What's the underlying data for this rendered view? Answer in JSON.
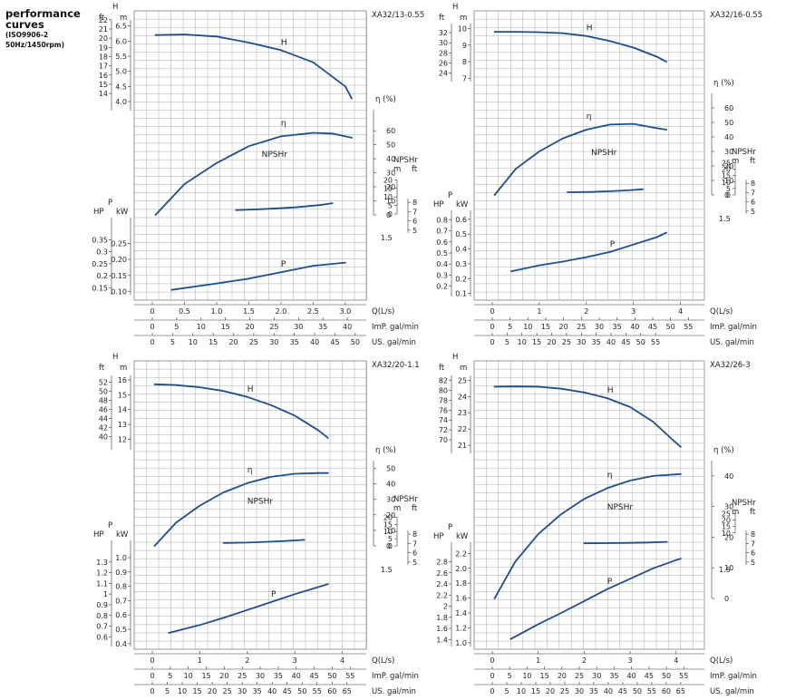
{
  "header": {
    "title_line1": "performance",
    "title_line2": "curves",
    "standard": "(ISO9906-2",
    "frequency": "50Hz/1450rpm)"
  },
  "chart_data": [
    {
      "type": "line",
      "model": "XA32/13-0.55",
      "qmax": 3.1,
      "q_ticks": [
        0,
        0.5,
        1.0,
        1.5,
        2.0,
        2.5,
        3.0
      ],
      "q_tick_labels": [
        "0",
        "0.5",
        "1.0",
        "1.5",
        "2.0",
        "2.5",
        "3.0"
      ],
      "imp_ticks": [
        0,
        5,
        10,
        15,
        20,
        25,
        30,
        35,
        40
      ],
      "us_ticks": [
        0,
        5,
        10,
        15,
        20,
        25,
        30,
        35,
        40,
        45,
        50
      ],
      "x_labels": {
        "q": "Q(L/s)",
        "imp": "ImP. gal/min",
        "us": "US. gal/min"
      },
      "H": {
        "m_range": [
          3.7,
          6.7
        ],
        "m_ticks": [
          4.0,
          4.5,
          5.0,
          5.5,
          6.0,
          6.5
        ],
        "m_tick_labels": [
          "4.0",
          "4.5",
          "5.0",
          "5.5",
          "6.0",
          "6.5"
        ],
        "ft_ticks": [
          14,
          15,
          16,
          17,
          18,
          19,
          20,
          21,
          22
        ],
        "points": [
          [
            0.05,
            6.2
          ],
          [
            0.5,
            6.22
          ],
          [
            1.0,
            6.15
          ],
          [
            1.5,
            5.95
          ],
          [
            2.0,
            5.7
          ],
          [
            2.5,
            5.3
          ],
          [
            3.0,
            4.5
          ],
          [
            3.1,
            4.1
          ]
        ]
      },
      "eta": {
        "max": 75,
        "ticks": [
          0,
          10,
          20,
          30,
          40,
          50,
          60
        ],
        "points": [
          [
            0.05,
            0
          ],
          [
            0.5,
            22
          ],
          [
            1.0,
            37
          ],
          [
            1.5,
            49
          ],
          [
            2.0,
            56
          ],
          [
            2.5,
            58.5
          ],
          [
            2.8,
            58
          ],
          [
            3.1,
            55
          ]
        ]
      },
      "npsh": {
        "ticks_m": [
          0,
          0.5,
          1.0,
          1.5,
          2.0
        ],
        "tick_labels_m": [
          "0",
          "5",
          "10",
          "15",
          "20"
        ],
        "ticks_ft": [
          5,
          6,
          7,
          8
        ],
        "ft_range": [
          4.6,
          8.5
        ],
        "points": [
          [
            1.3,
            2.3
          ],
          [
            1.7,
            2.8
          ],
          [
            2.2,
            3.8
          ],
          [
            2.6,
            5.2
          ],
          [
            2.8,
            6.3
          ]
        ]
      },
      "P": {
        "kw_range": [
          0.09,
          0.33
        ],
        "kw_ticks": [
          0.1,
          0.15,
          0.2,
          0.25
        ],
        "kw_tick_labels": [
          "0.10",
          "0.15",
          "0.20",
          "0.25"
        ],
        "hp_ticks": [
          0.15,
          0.2,
          0.25,
          0.3,
          0.35
        ],
        "points": [
          [
            0.3,
            0.105
          ],
          [
            1.0,
            0.125
          ],
          [
            1.5,
            0.14
          ],
          [
            2.0,
            0.16
          ],
          [
            2.5,
            0.18
          ],
          [
            3.0,
            0.19
          ]
        ]
      },
      "labels": {
        "H": "H",
        "eta": "η",
        "npsh": "NPSHr",
        "P": "P",
        "H_axis": "H",
        "m": "m",
        "ft": "ft",
        "eta_unit": "η (%)",
        "npsh_axis": "NPSHr",
        "p_axis": "P",
        "hp": "HP",
        "kw": "kW"
      }
    },
    {
      "type": "line",
      "model": "XA32/16-0.55",
      "qmax": 4.2,
      "q_ticks": [
        0,
        1,
        2,
        3,
        4
      ],
      "q_tick_labels": [
        "0",
        "1",
        "2",
        "3",
        "4"
      ],
      "imp_ticks": [
        0,
        5,
        10,
        15,
        20,
        25,
        30,
        35,
        40,
        45,
        50,
        55
      ],
      "us_ticks": [
        0,
        5,
        10,
        15,
        20,
        25,
        30,
        35,
        40,
        45,
        50,
        55
      ],
      "x_labels": {
        "q": "Q(L/s)",
        "imp": "ImP. gal/min",
        "us": "US. gal/min"
      },
      "H": {
        "m_range": [
          6.8,
          10.3
        ],
        "m_ticks": [
          7,
          8,
          9,
          10
        ],
        "m_tick_labels": [
          "7",
          "8",
          "9",
          "10"
        ],
        "ft_ticks": [
          24,
          26,
          28,
          30,
          32
        ],
        "points": [
          [
            0.05,
            9.8
          ],
          [
            0.5,
            9.8
          ],
          [
            1.0,
            9.78
          ],
          [
            1.5,
            9.72
          ],
          [
            2.0,
            9.55
          ],
          [
            2.5,
            9.25
          ],
          [
            3.0,
            8.85
          ],
          [
            3.5,
            8.3
          ],
          [
            3.7,
            8.0
          ]
        ]
      },
      "eta": {
        "max": 70,
        "ticks": [
          0,
          10,
          20,
          30,
          40,
          50,
          60
        ],
        "points": [
          [
            0.05,
            0
          ],
          [
            0.5,
            18
          ],
          [
            1.0,
            30
          ],
          [
            1.5,
            39
          ],
          [
            2.0,
            45
          ],
          [
            2.5,
            48.5
          ],
          [
            3.0,
            49
          ],
          [
            3.5,
            46
          ],
          [
            3.7,
            45
          ]
        ]
      },
      "npsh": {
        "ticks_m": [
          0,
          0.5,
          1.0,
          1.5,
          2.0,
          2.5
        ],
        "tick_labels_m": [
          "0",
          "5",
          "10",
          "15",
          "20",
          "25"
        ],
        "ticks_ft": [
          5,
          6,
          7,
          8
        ],
        "ft_range": [
          4.6,
          8.5
        ],
        "points": [
          [
            1.6,
            2.1
          ],
          [
            2.1,
            2.4
          ],
          [
            2.5,
            2.9
          ],
          [
            2.9,
            3.6
          ],
          [
            3.2,
            4.4
          ]
        ]
      },
      "P": {
        "kw_range": [
          0.08,
          0.66
        ],
        "kw_ticks": [
          0.1,
          0.2,
          0.3,
          0.4,
          0.5,
          0.6
        ],
        "kw_tick_labels": [
          "0.1",
          "0.2",
          "0.3",
          "0.4",
          "0.5",
          "0.6"
        ],
        "hp_ticks": [
          0.2,
          0.3,
          0.4,
          0.5,
          0.6,
          0.7,
          0.8
        ],
        "points": [
          [
            0.4,
            0.25
          ],
          [
            1.0,
            0.29
          ],
          [
            1.5,
            0.315
          ],
          [
            2.0,
            0.345
          ],
          [
            2.5,
            0.38
          ],
          [
            3.0,
            0.43
          ],
          [
            3.5,
            0.48
          ],
          [
            3.7,
            0.51
          ]
        ]
      },
      "labels": {
        "H": "H",
        "eta": "η",
        "npsh": "NPSHr",
        "P": "P",
        "H_axis": "H",
        "m": "m",
        "ft": "ft",
        "eta_unit": "η (%)",
        "npsh_axis": "NPSHr",
        "p_axis": "P",
        "hp": "HP",
        "kw": "kW"
      }
    },
    {
      "type": "line",
      "model": "XA32/20-1.1",
      "qmax": 4.2,
      "q_ticks": [
        0,
        1,
        2,
        3,
        4
      ],
      "q_tick_labels": [
        "0",
        "1",
        "2",
        "3",
        "4"
      ],
      "imp_ticks": [
        0,
        5,
        10,
        15,
        20,
        25,
        30,
        35,
        40,
        45,
        50,
        55
      ],
      "us_ticks": [
        0,
        5,
        10,
        15,
        20,
        25,
        30,
        35,
        40,
        45,
        50,
        55,
        60,
        65
      ],
      "x_labels": {
        "q": "Q(L/s)",
        "imp": "ImP. gal/min",
        "us": "US. gal/min"
      },
      "H": {
        "m_range": [
          11.3,
          16.3
        ],
        "m_ticks": [
          12,
          13,
          14,
          15,
          16
        ],
        "m_tick_labels": [
          "12",
          "13",
          "14",
          "15",
          "16"
        ],
        "ft_ticks": [
          40,
          42,
          44,
          46,
          48,
          50,
          52
        ],
        "points": [
          [
            0.05,
            15.7
          ],
          [
            0.5,
            15.65
          ],
          [
            1.0,
            15.5
          ],
          [
            1.5,
            15.25
          ],
          [
            2.0,
            14.85
          ],
          [
            2.5,
            14.3
          ],
          [
            3.0,
            13.6
          ],
          [
            3.5,
            12.6
          ],
          [
            3.7,
            12.1
          ]
        ]
      },
      "eta": {
        "max": 55,
        "ticks": [
          0,
          10,
          20,
          30,
          40,
          50
        ],
        "points": [
          [
            0.05,
            0
          ],
          [
            0.5,
            15
          ],
          [
            1.0,
            26
          ],
          [
            1.5,
            34.5
          ],
          [
            2.0,
            40.5
          ],
          [
            2.5,
            44.5
          ],
          [
            3.0,
            46.5
          ],
          [
            3.5,
            47
          ],
          [
            3.7,
            47
          ]
        ]
      },
      "npsh": {
        "ticks_m": [
          0,
          0.5,
          1.0,
          1.5,
          2.0
        ],
        "tick_labels_m": [
          "0",
          "5",
          "10",
          "15",
          "20"
        ],
        "ticks_ft": [
          5,
          6,
          7,
          8
        ],
        "ft_range": [
          4.6,
          8.5
        ],
        "points": [
          [
            1.5,
            2.0
          ],
          [
            2.0,
            2.3
          ],
          [
            2.5,
            2.9
          ],
          [
            3.0,
            3.8
          ],
          [
            3.2,
            4.2
          ]
        ]
      },
      "P": {
        "kw_range": [
          0.38,
          1.12
        ],
        "kw_ticks": [
          0.4,
          0.5,
          0.6,
          0.7,
          0.8,
          0.9,
          1.0
        ],
        "kw_tick_labels": [
          "0.4",
          "0.5",
          "0.6",
          "0.7",
          "0.8",
          "0.9",
          "1.0"
        ],
        "hp_ticks": [
          0.6,
          0.7,
          0.8,
          0.9,
          1.0,
          1.1,
          1.2,
          1.3
        ],
        "points": [
          [
            0.35,
            0.475
          ],
          [
            1.0,
            0.53
          ],
          [
            1.5,
            0.58
          ],
          [
            2.0,
            0.635
          ],
          [
            2.5,
            0.69
          ],
          [
            3.0,
            0.745
          ],
          [
            3.5,
            0.795
          ],
          [
            3.7,
            0.815
          ]
        ]
      },
      "labels": {
        "H": "H",
        "eta": "η",
        "npsh": "NPSHr",
        "P": "P",
        "H_axis": "H",
        "m": "m",
        "ft": "ft",
        "eta_unit": "η (%)",
        "npsh_axis": "NPSHr",
        "p_axis": "P",
        "hp": "HP",
        "kw": "kW"
      }
    },
    {
      "type": "line",
      "model": "XA32/26-3",
      "qmax": 4.3,
      "q_ticks": [
        0,
        1,
        2,
        3,
        4
      ],
      "q_tick_labels": [
        "0",
        "1",
        "2",
        "3",
        "4"
      ],
      "imp_ticks": [
        0,
        5,
        10,
        15,
        20,
        25,
        30,
        35,
        40,
        45,
        50,
        55
      ],
      "us_ticks": [
        0,
        5,
        10,
        15,
        20,
        25,
        30,
        35,
        40,
        45,
        50,
        55,
        60,
        65
      ],
      "x_labels": {
        "q": "Q(L/s)",
        "imp": "ImP. gal/min",
        "us": "US. gal/min"
      },
      "H": {
        "m_range": [
          20.5,
          25.3
        ],
        "m_ticks": [
          21,
          22,
          23,
          24,
          25
        ],
        "m_tick_labels": [
          "21",
          "22",
          "23",
          "24",
          "25"
        ],
        "ft_ticks": [
          70,
          72,
          74,
          76,
          78,
          80,
          82
        ],
        "points": [
          [
            0.05,
            24.6
          ],
          [
            0.5,
            24.62
          ],
          [
            1.0,
            24.6
          ],
          [
            1.5,
            24.48
          ],
          [
            2.0,
            24.25
          ],
          [
            2.5,
            23.9
          ],
          [
            3.0,
            23.35
          ],
          [
            3.5,
            22.45
          ],
          [
            3.9,
            21.4
          ],
          [
            4.1,
            20.9
          ]
        ]
      },
      "eta": {
        "max": 45,
        "ticks": [
          0,
          10,
          20,
          30,
          40
        ],
        "points": [
          [
            0.05,
            0
          ],
          [
            0.5,
            12
          ],
          [
            1.0,
            21
          ],
          [
            1.5,
            27.5
          ],
          [
            2.0,
            32.5
          ],
          [
            2.5,
            36
          ],
          [
            3.0,
            38.5
          ],
          [
            3.5,
            40
          ],
          [
            4.0,
            40.5
          ],
          [
            4.1,
            40.6
          ]
        ]
      },
      "npsh": {
        "ticks_m": [
          1.0,
          1.5,
          2.0,
          2.5
        ],
        "tick_labels_m": [
          "10",
          "15",
          "20",
          "25"
        ],
        "ticks_ft": [
          5,
          6,
          7,
          8
        ],
        "ft_range": [
          4.6,
          8.5
        ],
        "points": [
          [
            2.0,
            2.0
          ],
          [
            2.5,
            2.1
          ],
          [
            3.0,
            2.3
          ],
          [
            3.4,
            2.6
          ],
          [
            3.8,
            3.1
          ]
        ]
      },
      "P": {
        "kw_range": [
          0.95,
          2.35
        ],
        "kw_ticks": [
          1.0,
          1.2,
          1.4,
          1.6,
          1.8,
          2.0,
          2.2
        ],
        "kw_tick_labels": [
          "1.0",
          "1.2",
          "1.4",
          "1.6",
          "1.8",
          "2.0",
          "2.2"
        ],
        "hp_ticks": [
          1.4,
          1.6,
          1.8,
          2.0,
          2.2,
          2.4,
          2.6,
          2.8
        ],
        "points": [
          [
            0.4,
            1.05
          ],
          [
            1.0,
            1.25
          ],
          [
            1.5,
            1.4
          ],
          [
            2.0,
            1.56
          ],
          [
            2.5,
            1.72
          ],
          [
            3.0,
            1.86
          ],
          [
            3.5,
            2.0
          ],
          [
            4.0,
            2.11
          ],
          [
            4.1,
            2.13
          ]
        ]
      },
      "labels": {
        "H": "H",
        "eta": "η",
        "npsh": "NPSHr",
        "P": "P",
        "H_axis": "H",
        "m": "m",
        "ft": "ft",
        "eta_unit": "η (%)",
        "npsh_axis": "NPSHr",
        "p_axis": "P",
        "hp": "HP",
        "kw": "kW"
      }
    }
  ],
  "colors": {
    "curve": "#1f4e8c",
    "grid": "#a8a8a8",
    "text": "#222222",
    "ink": "#333333"
  }
}
